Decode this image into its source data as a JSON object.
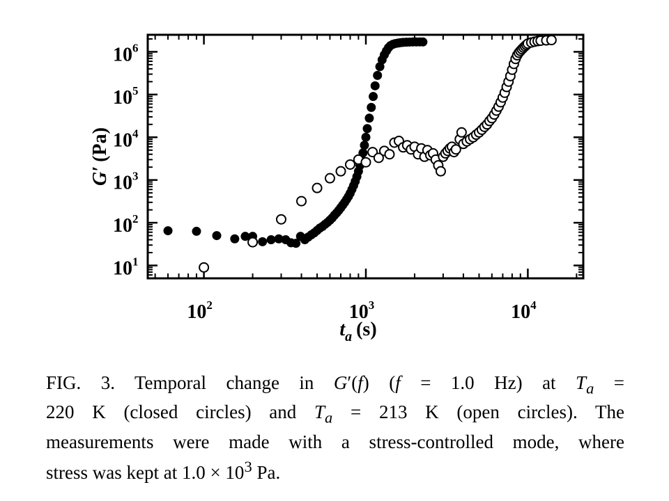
{
  "chart_data": {
    "type": "scatter",
    "x_scale": "log",
    "y_scale": "log",
    "xlim": [
      45,
      22000
    ],
    "ylim": [
      5,
      2500000
    ],
    "xlabel": {
      "var": "t",
      "sub": "a",
      "unit": "(s)"
    },
    "ylabel": {
      "prime": "G′",
      "unit": "(Pa)"
    },
    "x_ticks": [
      {
        "value": 100,
        "base": "10",
        "exp": "2"
      },
      {
        "value": 1000,
        "base": "10",
        "exp": "3"
      },
      {
        "value": 10000,
        "base": "10",
        "exp": "4"
      }
    ],
    "y_ticks": [
      {
        "value": 10,
        "base": "10",
        "exp": "1"
      },
      {
        "value": 100,
        "base": "10",
        "exp": "2"
      },
      {
        "value": 1000,
        "base": "10",
        "exp": "3"
      },
      {
        "value": 10000,
        "base": "10",
        "exp": "4"
      },
      {
        "value": 100000,
        "base": "10",
        "exp": "5"
      },
      {
        "value": 1000000,
        "base": "10",
        "exp": "6"
      }
    ],
    "series": [
      {
        "marker": "closed-circle",
        "color": "#000000",
        "x": [
          60,
          90,
          120,
          155,
          180,
          200,
          230,
          260,
          290,
          320,
          345,
          370,
          395,
          420,
          440,
          460,
          480,
          500,
          520,
          540,
          560,
          580,
          600,
          620,
          640,
          660,
          680,
          700,
          720,
          740,
          760,
          780,
          800,
          820,
          840,
          860,
          880,
          900,
          920,
          940,
          960,
          980,
          1000,
          1020,
          1050,
          1080,
          1110,
          1140,
          1180,
          1220,
          1260,
          1300,
          1340,
          1380,
          1420,
          1470,
          1520,
          1580,
          1640,
          1700,
          1780,
          1860,
          1950,
          2050,
          2150,
          2250
        ],
        "y": [
          65,
          63,
          50,
          42,
          48,
          48,
          36,
          40,
          42,
          40,
          34,
          33,
          48,
          40,
          46,
          52,
          58,
          66,
          75,
          82,
          92,
          102,
          115,
          130,
          150,
          170,
          195,
          225,
          260,
          300,
          350,
          410,
          490,
          600,
          740,
          930,
          1200,
          1600,
          2200,
          3000,
          4300,
          6500,
          10000,
          16000,
          28000,
          50000,
          90000,
          160000,
          280000,
          450000,
          650000,
          850000,
          1050000,
          1250000,
          1400000,
          1500000,
          1560000,
          1600000,
          1640000,
          1660000,
          1680000,
          1690000,
          1700000,
          1700000,
          1705000,
          1700000
        ]
      },
      {
        "marker": "open-circle",
        "color": "#000000",
        "x": [
          100,
          200,
          300,
          400,
          500,
          600,
          700,
          800,
          900,
          1000,
          1100,
          1200,
          1300,
          1400,
          1500,
          1600,
          1700,
          1800,
          1900,
          2000,
          2100,
          2200,
          2300,
          2400,
          2500,
          2600,
          2700,
          2800,
          2900,
          3000,
          3100,
          3200,
          3300,
          3400,
          3500,
          3600,
          3800,
          3900,
          4000,
          4200,
          4400,
          4600,
          4800,
          5000,
          5200,
          5400,
          5600,
          5800,
          6000,
          6200,
          6400,
          6600,
          6800,
          7000,
          7200,
          7400,
          7600,
          7800,
          8000,
          8200,
          8400,
          8600,
          8800,
          9000,
          9200,
          9400,
          9600,
          9800,
          10000,
          10500,
          11000,
          11500,
          12000,
          13000,
          14000
        ],
        "y": [
          9,
          35,
          120,
          320,
          650,
          1100,
          1600,
          2300,
          3000,
          2600,
          4500,
          3300,
          4800,
          4000,
          7500,
          8200,
          5800,
          6500,
          5200,
          6000,
          4000,
          5500,
          3500,
          5000,
          3800,
          4200,
          3000,
          2200,
          1600,
          3500,
          4200,
          4800,
          5500,
          6000,
          4500,
          5200,
          9000,
          13000,
          7000,
          8000,
          9000,
          10000,
          11500,
          13000,
          15000,
          17500,
          20000,
          24000,
          28000,
          34000,
          42000,
          52000,
          66000,
          85000,
          110000,
          150000,
          200000,
          270000,
          380000,
          520000,
          680000,
          830000,
          950000,
          1050000,
          1150000,
          1250000,
          1350000,
          1450000,
          1550000,
          1650000,
          1720000,
          1780000,
          1820000,
          1850000,
          1880000
        ]
      }
    ]
  },
  "caption": {
    "line1_a": "FIG. 3.   Temporal change in ",
    "line1_g": "G",
    "line1_b": "′(",
    "line1_f1": "f",
    "line1_c": ")  (",
    "line1_f2": "f",
    "line1_d": " = 1.0 Hz)  at  ",
    "line1_T": "T",
    "line1_sub": "a",
    "line1_e": " =",
    "line2_a": "220 K  (closed  circles)  and  ",
    "line2_T": "T",
    "line2_sub": "a",
    "line2_b": " = 213 K  (open circles).  The",
    "line3": "measurements were made with a stress-controlled mode, where",
    "line4_a": "stress was kept at 1.0 × 10",
    "line4_exp": "3",
    "line4_b": " Pa."
  }
}
